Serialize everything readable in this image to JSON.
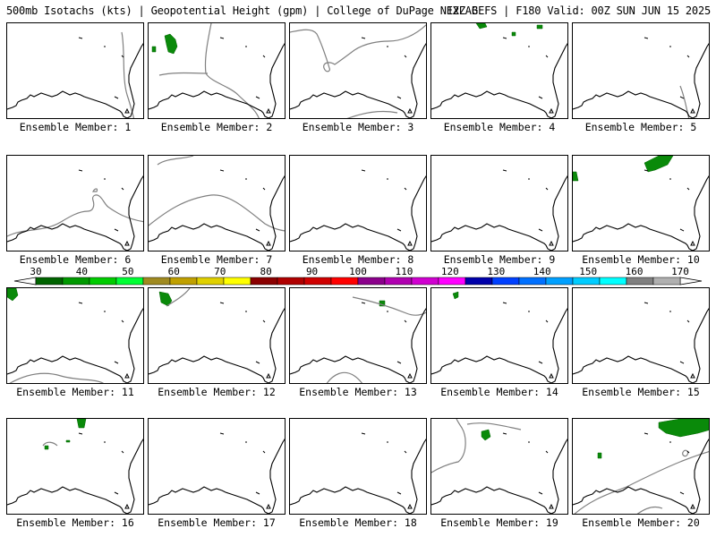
{
  "header": {
    "left": "500mb Isotachs (kts) | Geopotential Height (gpm) | College of DuPage NEXLAB",
    "right": "12Z GEFS | F180 Valid: 00Z SUN JUN 15 2025"
  },
  "members": [
    "Ensemble Member: 1",
    "Ensemble Member: 2",
    "Ensemble Member: 3",
    "Ensemble Member: 4",
    "Ensemble Member: 5",
    "Ensemble Member: 6",
    "Ensemble Member: 7",
    "Ensemble Member: 8",
    "Ensemble Member: 9",
    "Ensemble Member: 10",
    "Ensemble Member: 11",
    "Ensemble Member: 12",
    "Ensemble Member: 13",
    "Ensemble Member: 14",
    "Ensemble Member: 15",
    "Ensemble Member: 16",
    "Ensemble Member: 17",
    "Ensemble Member: 18",
    "Ensemble Member: 19",
    "Ensemble Member: 20"
  ],
  "colorbar": {
    "ticks": [
      "30",
      "40",
      "50",
      "60",
      "70",
      "80",
      "90",
      "100",
      "110",
      "120",
      "130",
      "140",
      "150",
      "160",
      "170"
    ],
    "colors": [
      "#006400",
      "#009900",
      "#00cc00",
      "#00ff33",
      "#a08a20",
      "#c0a000",
      "#e0d000",
      "#ffff00",
      "#8b0000",
      "#b00000",
      "#d00000",
      "#ff0000",
      "#8b008b",
      "#b000b0",
      "#d000d0",
      "#ff00ff",
      "#0000aa",
      "#0040ff",
      "#0070ff",
      "#00a0ff",
      "#00ccff",
      "#00ffff",
      "#808080",
      "#b0b0b0"
    ]
  },
  "icons": {
    "coastline": "coastline-outline",
    "height-contour": "gray-contour-line",
    "wind-blob": "green-isotach-area"
  }
}
